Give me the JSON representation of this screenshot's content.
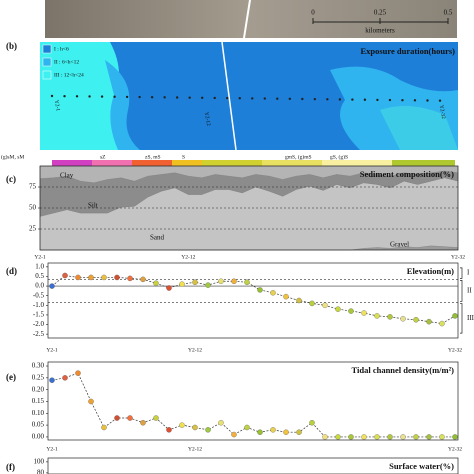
{
  "scale_bar": {
    "ticks": [
      0,
      0.25,
      0.5
    ],
    "unit": "kilometers"
  },
  "exposure_map": {
    "panel": "(b)",
    "title": "Exposure duration(hours)",
    "legend": [
      {
        "label": "I : h<6",
        "color": "#1e7fd8"
      },
      {
        "label": "II : 6<h<12",
        "color": "#2fb4f0"
      },
      {
        "label": "III : 12<h<24",
        "color": "#3ff0f0"
      }
    ],
    "transect_labels": [
      "Y2-1",
      "Y2-12",
      "Y2-32"
    ]
  },
  "sediment_classes": [
    "(g)sM, sM",
    "sZ",
    "zS, mS",
    "S",
    "gmS, (g)mS",
    "gS, (g)S"
  ],
  "chart_data": [
    {
      "type": "area",
      "panel": "(c)",
      "title": "Sediment composition(%)",
      "categories": [
        "Y2-1",
        null,
        null,
        null,
        null,
        null,
        null,
        null,
        null,
        null,
        null,
        "Y2-12",
        null,
        null,
        null,
        null,
        null,
        null,
        null,
        null,
        null,
        null,
        null,
        null,
        null,
        null,
        null,
        null,
        null,
        null,
        null,
        "Y2-32"
      ],
      "series": [
        {
          "name": "Gravel",
          "color": "#9a9a9a",
          "values": [
            0,
            0,
            0,
            0,
            0,
            0,
            0,
            0,
            0,
            0,
            0,
            0,
            0,
            0,
            0,
            0,
            0,
            0,
            0,
            0,
            0,
            0,
            0,
            0,
            2,
            3,
            2,
            4,
            3,
            5,
            4,
            3
          ]
        },
        {
          "name": "Sand",
          "color": "#c4c4c4",
          "values": [
            40,
            44,
            48,
            44,
            44,
            44,
            51,
            52,
            63,
            70,
            74,
            66,
            66,
            72,
            72,
            68,
            75,
            70,
            64,
            72,
            76,
            71,
            78,
            74,
            78,
            75,
            72,
            78,
            75,
            77,
            82,
            79
          ]
        },
        {
          "name": "Silt",
          "color": "#8c8c8c",
          "values": [
            45,
            42,
            40,
            38,
            36,
            40,
            35,
            30,
            25,
            20,
            18,
            22,
            20,
            18,
            16,
            18,
            15,
            18,
            20,
            16,
            14,
            15,
            12,
            14,
            12,
            12,
            14,
            10,
            12,
            10,
            8,
            10
          ]
        },
        {
          "name": "Clay",
          "color": "#b4b4b4",
          "values": [
            15,
            14,
            12,
            18,
            20,
            16,
            14,
            18,
            12,
            10,
            8,
            12,
            14,
            10,
            12,
            14,
            10,
            12,
            16,
            12,
            10,
            14,
            10,
            12,
            8,
            10,
            12,
            8,
            10,
            8,
            6,
            8
          ]
        }
      ],
      "ylim": [
        0,
        100
      ],
      "yticks": [
        25,
        50,
        75
      ]
    },
    {
      "type": "line",
      "panel": "(d)",
      "title": "Elevation(m)",
      "categories": [
        "Y2-1",
        null,
        null,
        null,
        null,
        null,
        null,
        null,
        null,
        null,
        null,
        "Y2-12",
        null,
        null,
        null,
        null,
        null,
        null,
        null,
        null,
        null,
        null,
        null,
        null,
        null,
        null,
        null,
        null,
        null,
        null,
        null,
        "Y2-32"
      ],
      "values": [
        0.0,
        0.55,
        0.45,
        0.45,
        0.45,
        0.45,
        0.4,
        0.35,
        0.15,
        -0.1,
        0.1,
        0.2,
        0.05,
        0.25,
        0.25,
        0.2,
        -0.2,
        -0.35,
        -0.55,
        -0.75,
        -0.9,
        -1.0,
        -1.2,
        -1.3,
        -1.4,
        -1.55,
        -1.6,
        -1.7,
        -1.75,
        -1.85,
        -1.95,
        -1.55
      ],
      "point_colors": [
        "#3b6fd0",
        "#e06040",
        "#f08a30",
        "#f0a030",
        "#e8c040",
        "#d05030",
        "#f07040",
        "#e0a040",
        "#c8d040",
        "#e05030",
        "#f0e050",
        "#d8c040",
        "#a0c840",
        "#e8e070",
        "#f0b040",
        "#c0d040",
        "#98c030",
        "#e8d050",
        "#f0c040",
        "#d0c040",
        "#b8d040",
        "#f0e080",
        "#c8d840",
        "#a8c838",
        "#f0e060",
        "#d8e050",
        "#b0c840",
        "#e8e090",
        "#c0d048",
        "#a8c040",
        "#d8e060",
        "#90c030"
      ],
      "ylim": [
        -2.7,
        1.2
      ],
      "yticks": [
        {
          "value": 1,
          "label": "1.0"
        },
        0.5,
        {
          "value": 0,
          "label": "0.0"
        },
        -0.5,
        {
          "value": -1,
          "label": "-1.0"
        },
        -1.5,
        {
          "value": -2,
          "label": "-2.0"
        },
        -2.5
      ],
      "reference_lines": [
        {
          "value": 0.35,
          "style": "dashed"
        },
        {
          "value": 0,
          "style": "solid"
        },
        {
          "value": -0.85,
          "style": "dashed"
        }
      ],
      "zones": [
        {
          "label": "I",
          "from": 1.0,
          "to": 0.35
        },
        {
          "label": "II",
          "from": 0.35,
          "to": -0.85
        },
        {
          "label": "III",
          "from": -0.85,
          "to": -2.5
        }
      ]
    },
    {
      "type": "line",
      "panel": "(e)",
      "title": "Tidal channel density(m/m²)",
      "categories": [
        "Y2-1",
        null,
        null,
        null,
        null,
        null,
        null,
        null,
        null,
        null,
        null,
        "Y2-12",
        null,
        null,
        null,
        null,
        null,
        null,
        null,
        null,
        null,
        null,
        null,
        null,
        null,
        null,
        null,
        null,
        null,
        null,
        null,
        "Y2-32"
      ],
      "values": [
        0.24,
        0.25,
        0.27,
        0.15,
        0.04,
        0.08,
        0.08,
        0.06,
        0.08,
        0.03,
        0.05,
        0.04,
        0.03,
        0.06,
        0.01,
        0.04,
        0.02,
        0.03,
        0.02,
        0.02,
        0.06,
        0,
        0,
        0,
        0,
        0,
        0,
        0,
        0,
        0,
        0,
        0
      ],
      "point_colors": [
        "#3b6fd0",
        "#e06040",
        "#f08a30",
        "#f0a030",
        "#e8c040",
        "#d05030",
        "#f07040",
        "#e0a040",
        "#c8d040",
        "#e05030",
        "#f0e050",
        "#d8c040",
        "#a0c840",
        "#e8e070",
        "#f0b040",
        "#c0d040",
        "#98c030",
        "#e8d050",
        "#f0c040",
        "#d0c040",
        "#b8d040",
        "#f0e080",
        "#c8d840",
        "#a8c838",
        "#f0e060",
        "#d8e050",
        "#b0c840",
        "#e8e090",
        "#c0d048",
        "#a8c040",
        "#d8e060",
        "#90c030"
      ],
      "ylim": [
        -0.013,
        0.317
      ],
      "yticks": [
        {
          "value": 0.3,
          "label": "0.30"
        },
        0.25,
        {
          "value": 0.2,
          "label": "0.20"
        },
        0.15,
        {
          "value": 0.1,
          "label": "0.10"
        },
        0.05,
        {
          "value": 0,
          "label": "0.00"
        }
      ]
    },
    {
      "type": "line",
      "panel": "(f)",
      "title": "Surface water(%)",
      "ylim": [
        78,
        107
      ],
      "yticks": [
        100,
        80
      ]
    }
  ]
}
